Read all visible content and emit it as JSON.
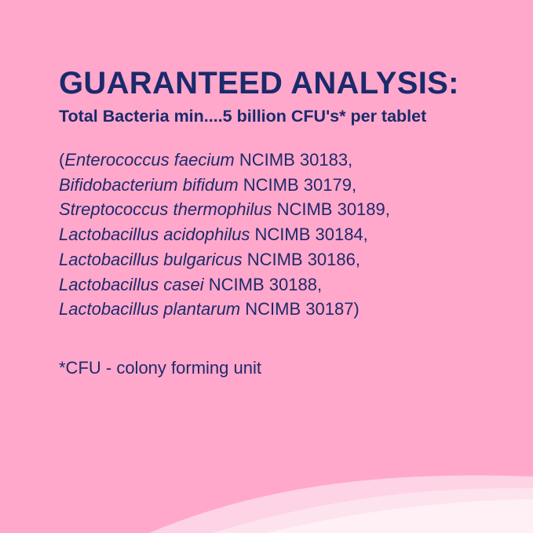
{
  "title": "GUARANTEED ANALYSIS:",
  "subtitle": "Total Bacteria min....5 billion CFU's* per tablet",
  "strains": [
    {
      "prefix": "(",
      "name": "Enterococcus faecium",
      "code": " NCIMB 30183,"
    },
    {
      "prefix": "",
      "name": "Bifidobacterium bifidum",
      "code": " NCIMB 30179,"
    },
    {
      "prefix": "",
      "name": "Streptococcus thermophilus",
      "code": " NCIMB 30189,"
    },
    {
      "prefix": "",
      "name": "Lactobacillus acidophilus",
      "code": " NCIMB 30184,"
    },
    {
      "prefix": "",
      "name": "Lactobacillus bulgaricus",
      "code": " NCIMB 30186,"
    },
    {
      "prefix": "",
      "name": "Lactobacillus casei",
      "code": " NCIMB 30188,"
    },
    {
      "prefix": "",
      "name": "Lactobacillus plantarum",
      "code": " NCIMB 30187)"
    }
  ],
  "footnote": "*CFU - colony forming unit",
  "colors": {
    "background": "#ffa8cc",
    "text": "#1b2a6b",
    "wave_light": "#fdd3e5",
    "wave_lighter": "#fff0f6"
  }
}
